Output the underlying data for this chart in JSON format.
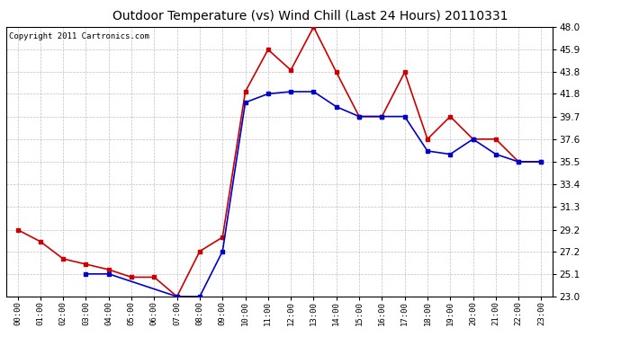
{
  "title": "Outdoor Temperature (vs) Wind Chill (Last 24 Hours) 20110331",
  "copyright": "Copyright 2011 Cartronics.com",
  "x_labels": [
    "00:00",
    "01:00",
    "02:00",
    "03:00",
    "04:00",
    "05:00",
    "06:00",
    "07:00",
    "08:00",
    "09:00",
    "10:00",
    "11:00",
    "12:00",
    "13:00",
    "14:00",
    "15:00",
    "16:00",
    "17:00",
    "18:00",
    "19:00",
    "20:00",
    "21:00",
    "22:00",
    "23:00"
  ],
  "red_data": [
    29.2,
    28.1,
    26.5,
    26.0,
    25.5,
    24.8,
    24.8,
    23.0,
    27.2,
    28.5,
    42.0,
    45.9,
    44.0,
    48.0,
    43.8,
    39.7,
    39.7,
    43.8,
    37.6,
    39.7,
    37.6,
    37.6,
    35.5,
    35.5
  ],
  "blue_data": [
    null,
    null,
    null,
    25.1,
    25.1,
    null,
    null,
    23.0,
    23.0,
    27.2,
    41.0,
    41.8,
    42.0,
    42.0,
    40.6,
    39.7,
    39.7,
    39.7,
    36.5,
    36.2,
    37.6,
    36.2,
    35.5,
    35.5
  ],
  "red_color": "#cc0000",
  "blue_color": "#0000cc",
  "bg_color": "#ffffff",
  "plot_bg": "#ffffff",
  "grid_color": "#b0b0b0",
  "ymin": 23.0,
  "ymax": 48.0,
  "yticks": [
    23.0,
    25.1,
    27.2,
    29.2,
    31.3,
    33.4,
    35.5,
    37.6,
    39.7,
    41.8,
    43.8,
    45.9,
    48.0
  ],
  "title_fontsize": 10,
  "copyright_fontsize": 6.5
}
